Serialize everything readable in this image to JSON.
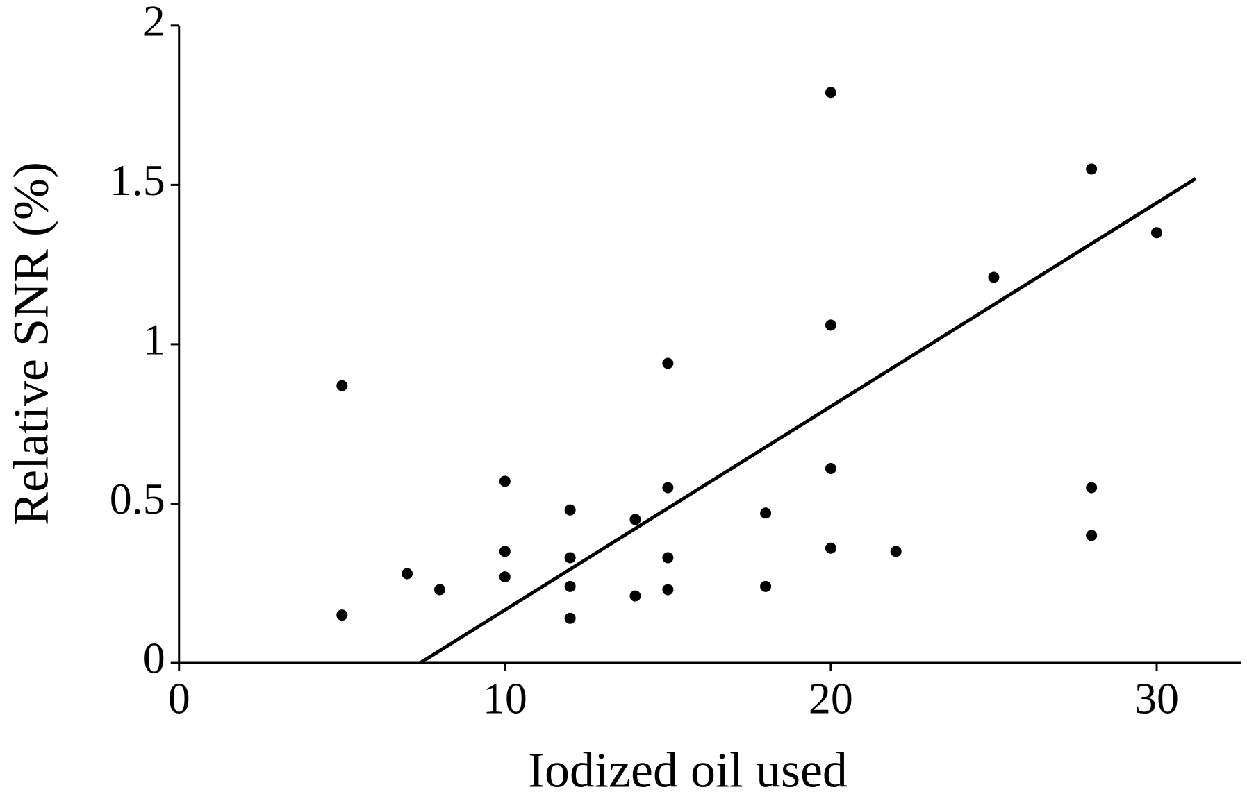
{
  "chart_data": {
    "type": "scatter",
    "x_label": "Iodized oil used",
    "y_label": "Relative SNR (%)",
    "x": [
      5,
      5,
      7,
      8,
      10,
      10,
      10,
      12,
      12,
      12,
      12,
      14,
      14,
      15,
      15,
      15,
      15,
      18,
      18,
      20,
      20,
      20,
      20,
      22,
      25,
      28,
      28,
      28,
      30
    ],
    "values": [
      0.15,
      0.87,
      0.28,
      0.23,
      0.57,
      0.35,
      0.27,
      0.48,
      0.33,
      0.24,
      0.14,
      0.45,
      0.21,
      0.94,
      0.55,
      0.33,
      0.23,
      0.47,
      0.24,
      1.79,
      1.06,
      0.61,
      0.36,
      0.35,
      1.21,
      1.55,
      0.55,
      0.4,
      1.35
    ],
    "color": "#000000",
    "trendline": {
      "x": [
        7.4,
        31.2
      ],
      "values": [
        0,
        1.52
      ]
    },
    "xlim": [
      0,
      32.6
    ],
    "ylim": [
      0,
      2
    ],
    "xticks": [
      0,
      10,
      20,
      30
    ],
    "yticks": [
      0,
      0.5,
      1,
      1.5,
      2
    ],
    "grid": false
  }
}
